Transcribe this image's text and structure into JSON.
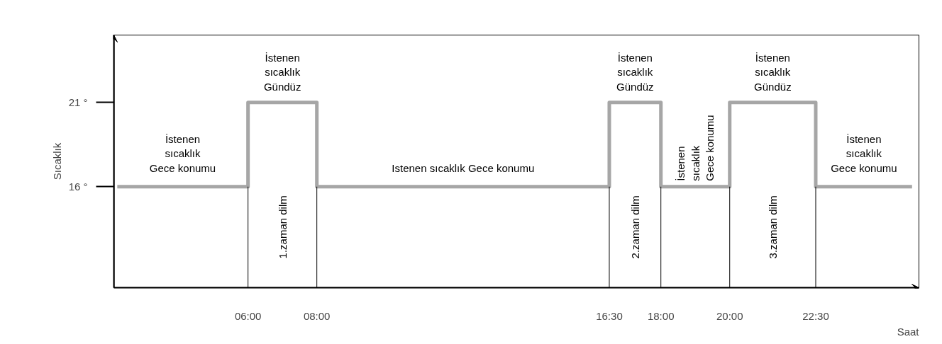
{
  "chart_data": {
    "type": "step",
    "ylabel": "Sıcaklık",
    "xlabel": "Saat",
    "x": [
      2.2,
      6,
      8,
      16.5,
      18,
      20,
      22.5,
      25.3
    ],
    "series": [
      {
        "color": "#a6a6a6",
        "values": [
          16,
          21,
          16,
          21,
          16,
          21,
          16,
          16
        ]
      }
    ],
    "xlim": [
      2.1,
      25.5
    ],
    "ylim": [
      10,
      25
    ],
    "xticks": [
      {
        "value": 6,
        "label": "06:00"
      },
      {
        "value": 8,
        "label": "08:00"
      },
      {
        "value": 16.5,
        "label": "16:30"
      },
      {
        "value": 18,
        "label": "18:00"
      },
      {
        "value": 20,
        "label": "20:00"
      },
      {
        "value": 22.5,
        "label": "22:30"
      }
    ],
    "yticks": [
      {
        "value": 16,
        "label": "16 °"
      },
      {
        "value": 21,
        "label": "21 °"
      }
    ],
    "ref_lines": [
      {
        "axis": "x",
        "value": 6
      },
      {
        "axis": "x",
        "value": 8
      },
      {
        "axis": "x",
        "value": 16.5
      },
      {
        "axis": "x",
        "value": 18
      },
      {
        "axis": "x",
        "value": 20
      },
      {
        "axis": "x",
        "value": 22.5
      }
    ],
    "annotations": [
      "İstenen\nsıcaklık\nGece konumu",
      "İstenen\nsıcaklık\nGündüz",
      "1.zaman dilm",
      "Istenen sıcaklık Gece konumu",
      "İstenen\nsıcaklık\nGündüz",
      "2.zaman dilm",
      "İstenen\nsıcaklık\nGece konumu",
      "İstenen\nsıcaklık\nGündüz",
      "3.zaman dilm",
      "İstenen\nsıcaklık\nGece konumu"
    ],
    "grid": false,
    "marker": "none",
    "line_style": "solid"
  }
}
